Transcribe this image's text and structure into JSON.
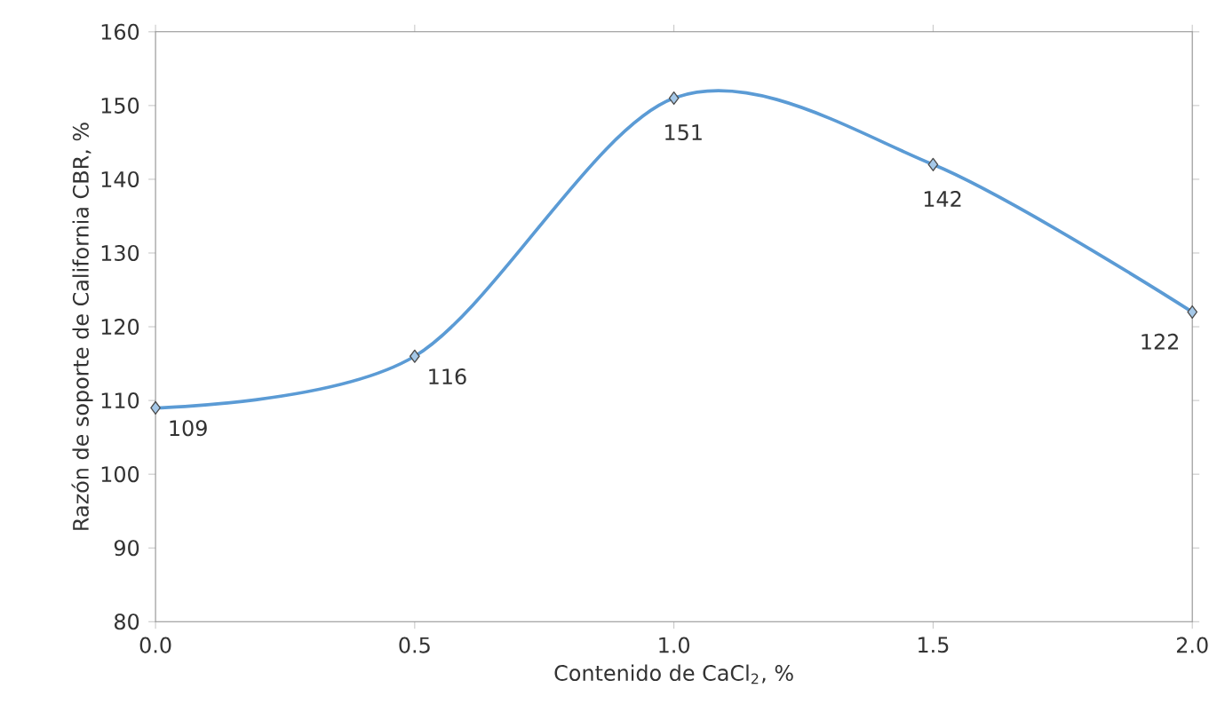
{
  "chart_data": {
    "type": "line",
    "xlabel": "Contenido de CaCl$_{2}$, %",
    "ylabel": "Razón de soporte de California CBR, %",
    "x": [
      0,
      0.5,
      1,
      1.5,
      2
    ],
    "series": [
      {
        "color": "#5b9bd5",
        "values": [
          109,
          116,
          151,
          142,
          122
        ]
      }
    ],
    "xlim": [
      0,
      2
    ],
    "xticks": [
      {
        "value": 0,
        "label": "0.0"
      },
      {
        "value": 0.5,
        "label": "0.5"
      },
      {
        "value": 1,
        "label": "1.0"
      },
      {
        "value": 1.5,
        "label": "1.5"
      },
      {
        "value": 2,
        "label": "2.0"
      }
    ],
    "ylim": [
      80,
      160
    ],
    "yticks": [
      80,
      90,
      100,
      110,
      120,
      130,
      140,
      150,
      160
    ],
    "data_labels": true,
    "marker": "diamond",
    "line_style": "solid"
  }
}
